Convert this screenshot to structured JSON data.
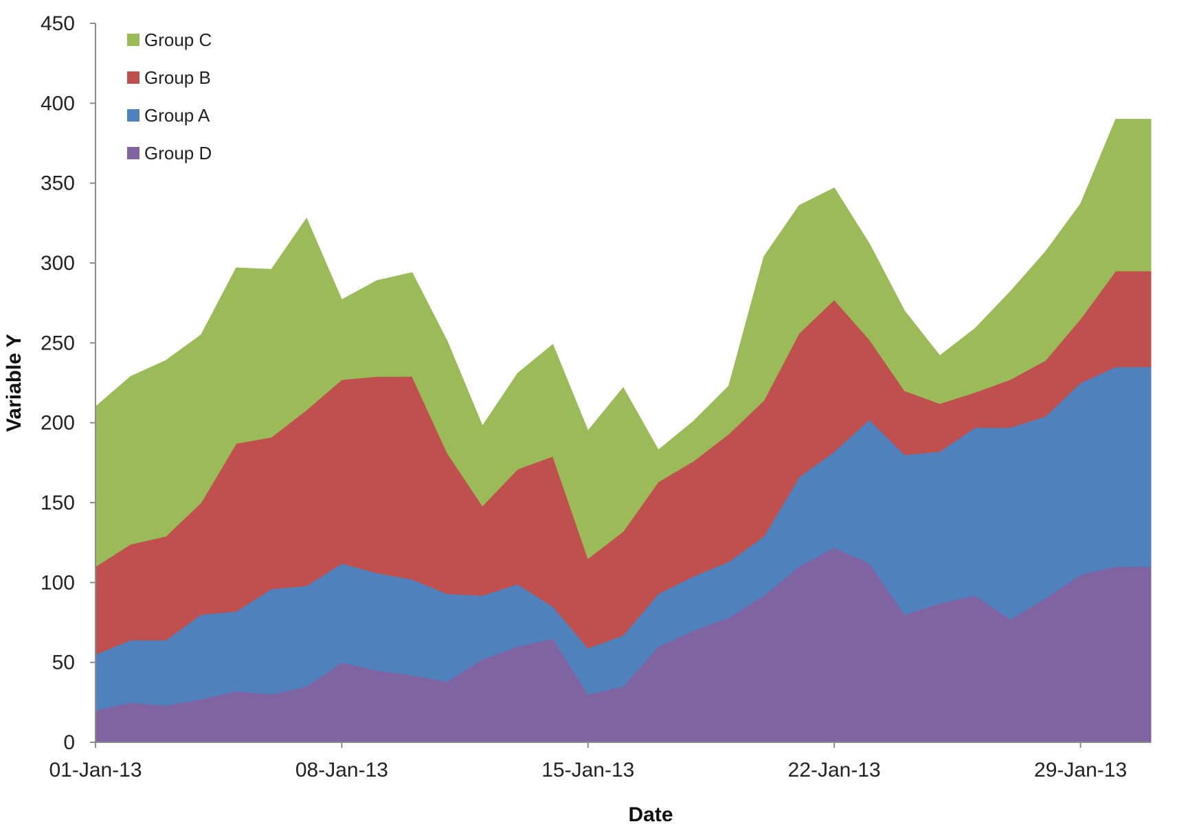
{
  "chart_data": {
    "type": "area",
    "stacked": true,
    "xlabel": "Date",
    "ylabel": "Variable Y",
    "ylim": [
      0,
      450
    ],
    "yticks": [
      0,
      50,
      100,
      150,
      200,
      250,
      300,
      350,
      400,
      450
    ],
    "xlim": [
      "01-Jan-13",
      "31-Jan-13"
    ],
    "xtick_labels": [
      "01-Jan-13",
      "08-Jan-13",
      "15-Jan-13",
      "22-Jan-13",
      "29-Jan-13"
    ],
    "grid": false,
    "legend_position": "top-left",
    "x": [
      "01-Jan-13",
      "02-Jan-13",
      "03-Jan-13",
      "04-Jan-13",
      "05-Jan-13",
      "06-Jan-13",
      "07-Jan-13",
      "08-Jan-13",
      "09-Jan-13",
      "10-Jan-13",
      "11-Jan-13",
      "12-Jan-13",
      "13-Jan-13",
      "14-Jan-13",
      "15-Jan-13",
      "16-Jan-13",
      "17-Jan-13",
      "18-Jan-13",
      "19-Jan-13",
      "20-Jan-13",
      "21-Jan-13",
      "22-Jan-13",
      "23-Jan-13",
      "24-Jan-13",
      "25-Jan-13",
      "26-Jan-13",
      "27-Jan-13",
      "28-Jan-13",
      "29-Jan-13",
      "30-Jan-13",
      "31-Jan-13"
    ],
    "series": [
      {
        "name": "Group D",
        "color": "#8064a2",
        "values": [
          20,
          25,
          23,
          27,
          32,
          30,
          35,
          50,
          45,
          42,
          38,
          52,
          60,
          65,
          30,
          35,
          60,
          70,
          78,
          92,
          110,
          122,
          112,
          80,
          87,
          92,
          77,
          90,
          105,
          110,
          110
        ]
      },
      {
        "name": "Group A",
        "color": "#4f81bd",
        "values": [
          35,
          39,
          41,
          53,
          50,
          66,
          63,
          62,
          61,
          60,
          55,
          40,
          39,
          20,
          29,
          32,
          33,
          34,
          35,
          37,
          56,
          60,
          90,
          100,
          95,
          105,
          120,
          114,
          120,
          125,
          125
        ]
      },
      {
        "name": "Group B",
        "color": "#c0504d",
        "values": [
          55,
          60,
          65,
          70,
          105,
          95,
          110,
          115,
          123,
          127,
          88,
          56,
          72,
          94,
          56,
          65,
          70,
          72,
          80,
          85,
          90,
          95,
          50,
          40,
          30,
          22,
          30,
          35,
          40,
          60,
          60
        ]
      },
      {
        "name": "Group C",
        "color": "#9bbb59",
        "values": [
          100,
          105,
          110,
          105,
          110,
          105,
          120,
          50,
          60,
          65,
          70,
          50,
          60,
          70,
          80,
          90,
          20,
          25,
          30,
          90,
          80,
          70,
          60,
          50,
          30,
          40,
          55,
          68,
          72,
          95,
          95
        ]
      }
    ],
    "legend_order": [
      "Group C",
      "Group B",
      "Group A",
      "Group D"
    ]
  }
}
